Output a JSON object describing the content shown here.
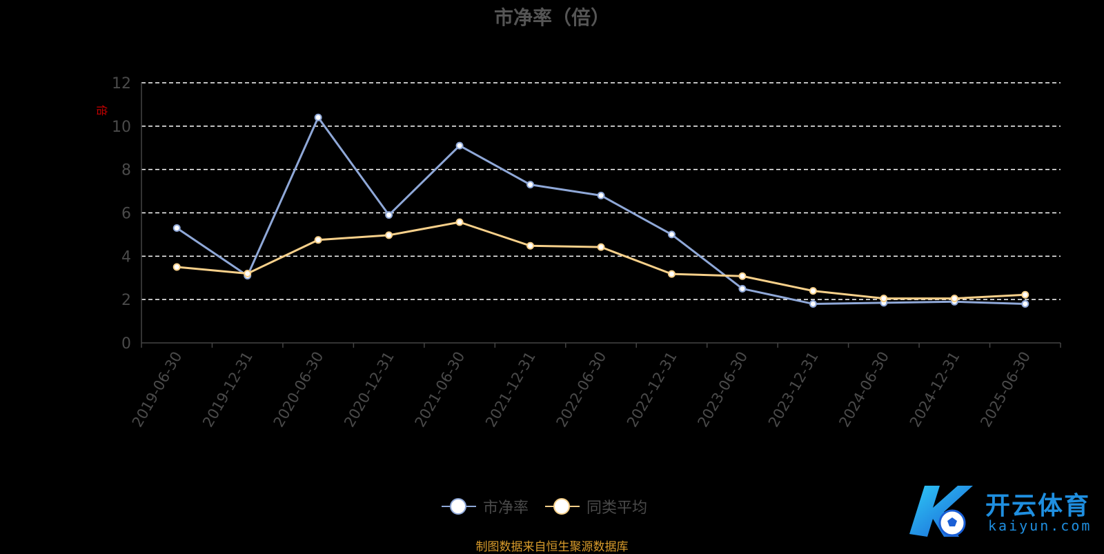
{
  "chart_data": {
    "type": "line",
    "title": "市净率（倍）",
    "ylabel": "倍",
    "xlabel": "",
    "categories": [
      "2019-06-30",
      "2019-12-31",
      "2020-06-30",
      "2020-12-31",
      "2021-06-30",
      "2021-12-31",
      "2022-06-30",
      "2022-12-31",
      "2023-06-30",
      "2023-12-31",
      "2024-06-30",
      "2024-12-31",
      "2025-06-30"
    ],
    "yticks": [
      "0",
      "2",
      "4",
      "6",
      "8",
      "10",
      "12"
    ],
    "ylim": [
      0,
      12
    ],
    "grid": true,
    "legend_position": "bottom",
    "series": [
      {
        "name": "市净率",
        "color": "#8fa8d8",
        "values": [
          5.3,
          3.1,
          10.4,
          5.9,
          9.1,
          7.3,
          6.8,
          5.0,
          2.5,
          1.8,
          1.85,
          1.9,
          1.8
        ]
      },
      {
        "name": "同类平均",
        "color": "#f7d08a",
        "values": [
          3.5,
          3.2,
          4.75,
          4.97,
          5.57,
          4.48,
          4.42,
          3.18,
          3.08,
          2.4,
          2.05,
          2.05,
          2.22
        ]
      }
    ]
  },
  "legend": {
    "items": [
      {
        "label": "市净率",
        "color": "#8fa8d8"
      },
      {
        "label": "同类平均",
        "color": "#f7d08a"
      }
    ]
  },
  "source_note": "制图数据来自恒生聚源数据库",
  "watermark": {
    "text": "开云体育",
    "sub": "kaiyun.com",
    "icon": "kaiyun-logo-icon"
  }
}
